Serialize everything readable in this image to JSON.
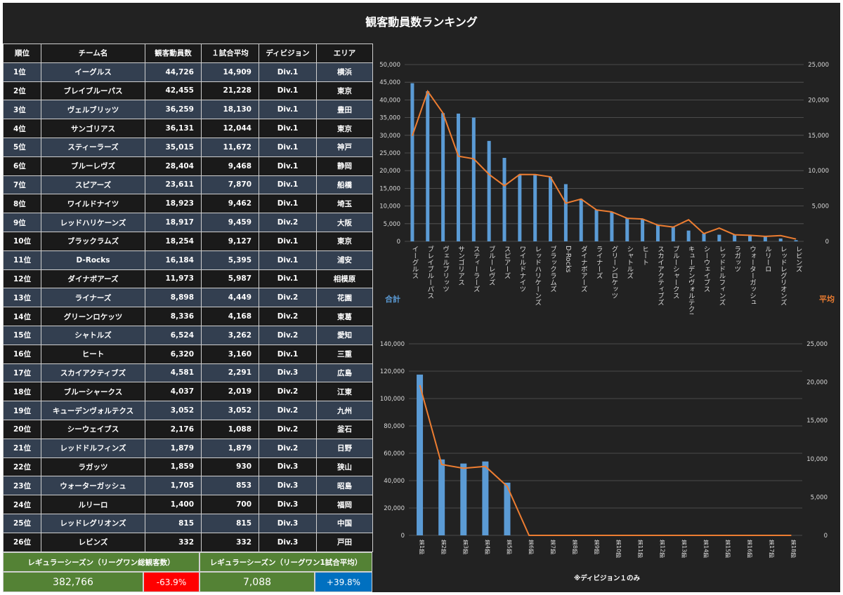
{
  "title": "観客動員数ランキング",
  "table": {
    "headers": [
      "順位",
      "チーム名",
      "観客動員数",
      "１試合平均",
      "ディビジョン",
      "エリア"
    ],
    "rows": [
      [
        "1位",
        "イーグルス",
        "44,726",
        "14,909",
        "Div.1",
        "横浜"
      ],
      [
        "2位",
        "ブレイブルーパス",
        "42,455",
        "21,228",
        "Div.1",
        "東京"
      ],
      [
        "3位",
        "ヴェルブリッツ",
        "36,259",
        "18,130",
        "Div.1",
        "豊田"
      ],
      [
        "4位",
        "サンゴリアス",
        "36,131",
        "12,044",
        "Div.1",
        "東京"
      ],
      [
        "5位",
        "スティーラーズ",
        "35,015",
        "11,672",
        "Div.1",
        "神戸"
      ],
      [
        "6位",
        "ブルーレヴズ",
        "28,404",
        "9,468",
        "Div.1",
        "静岡"
      ],
      [
        "7位",
        "スピアーズ",
        "23,611",
        "7,870",
        "Div.1",
        "船橋"
      ],
      [
        "8位",
        "ワイルドナイツ",
        "18,923",
        "9,462",
        "Div.1",
        "埼玉"
      ],
      [
        "9位",
        "レッドハリケーンズ",
        "18,917",
        "9,459",
        "Div.2",
        "大阪"
      ],
      [
        "10位",
        "ブラックラムズ",
        "18,254",
        "9,127",
        "Div.1",
        "東京"
      ],
      [
        "11位",
        "D-Rocks",
        "16,184",
        "5,395",
        "Div.1",
        "浦安"
      ],
      [
        "12位",
        "ダイナボアーズ",
        "11,973",
        "5,987",
        "Div.1",
        "相模原"
      ],
      [
        "13位",
        "ライナーズ",
        "8,898",
        "4,449",
        "Div.2",
        "花園"
      ],
      [
        "14位",
        "グリーンロケッツ",
        "8,336",
        "4,168",
        "Div.2",
        "東葛"
      ],
      [
        "15位",
        "シャトルズ",
        "6,524",
        "3,262",
        "Div.2",
        "愛知"
      ],
      [
        "16位",
        "ヒート",
        "6,320",
        "3,160",
        "Div.1",
        "三重"
      ],
      [
        "17位",
        "スカイアクティブズ",
        "4,581",
        "2,291",
        "Div.3",
        "広島"
      ],
      [
        "18位",
        "ブルーシャークス",
        "4,037",
        "2,019",
        "Div.2",
        "江東"
      ],
      [
        "19位",
        "キューデンヴォルテクス",
        "3,052",
        "3,052",
        "Div.2",
        "九州"
      ],
      [
        "20位",
        "シーウェイブス",
        "2,176",
        "1,088",
        "Div.2",
        "釜石"
      ],
      [
        "21位",
        "レッドドルフィンズ",
        "1,879",
        "1,879",
        "Div.2",
        "日野"
      ],
      [
        "22位",
        "ラガッツ",
        "1,859",
        "930",
        "Div.3",
        "狭山"
      ],
      [
        "23位",
        "ウォーターガッシュ",
        "1,705",
        "853",
        "Div.3",
        "昭島"
      ],
      [
        "24位",
        "ルリーロ",
        "1,400",
        "700",
        "Div.3",
        "福岡"
      ],
      [
        "25位",
        "レッドレグリオンズ",
        "815",
        "815",
        "Div.3",
        "中国"
      ],
      [
        "26位",
        "レビンズ",
        "332",
        "332",
        "Div.3",
        "戸田"
      ]
    ]
  },
  "summary": {
    "total_label": "レギュラーシーズン（リーグワン総観客数）",
    "total_value": "382,766",
    "total_change": "-63.9%",
    "avg_label": "レギュラーシーズン（リーグワン1試合平均）",
    "avg_value": "7,088",
    "avg_change": "+39.8%"
  },
  "colors": {
    "bar": "#5b9bd5",
    "line": "#ed7d31",
    "row_odd": "#333f50",
    "row_even": "#1a1a1a",
    "summary_green": "#548235",
    "negative": "#ff0000",
    "positive": "#0070c0"
  },
  "chart_data": [
    {
      "type": "bar",
      "categories": [
        "イーグルス",
        "ブレイブルーパス",
        "ヴェルブリッツ",
        "サンゴリアス",
        "スティーラーズ",
        "ブルーレヴズ",
        "スピアーズ",
        "ワイルドナイツ",
        "レッドハリケーンズ",
        "ブラックラムズ",
        "D-Rocks",
        "ダイナボアーズ",
        "ライナーズ",
        "グリーンロケッツ",
        "シャトルズ",
        "ヒート",
        "スカイアクティブズ",
        "ブルーシャークス",
        "キューデンヴォルテクス",
        "シーウェイブス",
        "レッドドルフィンズ",
        "ラガッツ",
        "ウォーターガッシュ",
        "ルリーロ",
        "レッドレグリオンズ",
        "レビンズ"
      ],
      "series": [
        {
          "name": "合計",
          "axis": "left",
          "kind": "bar",
          "values": [
            44726,
            42455,
            36259,
            36131,
            35015,
            28404,
            23611,
            18923,
            18917,
            18254,
            16184,
            11973,
            8898,
            8336,
            6524,
            6320,
            4581,
            4037,
            3052,
            2176,
            1879,
            1859,
            1705,
            1400,
            815,
            332
          ]
        },
        {
          "name": "平均",
          "axis": "right",
          "kind": "line",
          "values": [
            14909,
            21228,
            18130,
            12044,
            11672,
            9468,
            7870,
            9462,
            9459,
            9127,
            5395,
            5987,
            4449,
            4168,
            3262,
            3160,
            2291,
            2019,
            3052,
            1088,
            1879,
            930,
            853,
            700,
            815,
            332
          ]
        }
      ],
      "ylim": [
        0,
        50000
      ],
      "yticks": [
        "0",
        "5,000",
        "10,000",
        "15,000",
        "20,000",
        "25,000",
        "30,000",
        "35,000",
        "40,000",
        "45,000",
        "50,000"
      ],
      "y2lim": [
        0,
        25000
      ],
      "y2ticks": [
        "0",
        "5,000",
        "10,000",
        "15,000",
        "20,000",
        "25,000"
      ],
      "ylabel": "合計",
      "y2label": "平均",
      "grid": true
    },
    {
      "type": "bar",
      "categories": [
        "第1節",
        "第2節",
        "第3節",
        "第4節",
        "第5節",
        "第6節",
        "第7節",
        "第8節",
        "第9節",
        "第10節",
        "第11節",
        "第12節",
        "第13節",
        "第14節",
        "第15節",
        "第16節",
        "第17節",
        "第18節"
      ],
      "series": [
        {
          "name": "合計",
          "axis": "left",
          "kind": "bar",
          "values": [
            117500,
            55500,
            52500,
            54000,
            38500,
            0,
            0,
            0,
            0,
            0,
            0,
            0,
            0,
            0,
            0,
            0,
            0,
            0
          ]
        },
        {
          "name": "平均",
          "axis": "right",
          "kind": "line",
          "values": [
            19600,
            9250,
            8750,
            9000,
            6400,
            0,
            0,
            0,
            0,
            0,
            0,
            0,
            0,
            0,
            0,
            0,
            0,
            0
          ]
        }
      ],
      "ylim": [
        0,
        140000
      ],
      "yticks": [
        "0",
        "20,000",
        "40,000",
        "60,000",
        "80,000",
        "100,000",
        "120,000",
        "140,000"
      ],
      "y2lim": [
        0,
        25000
      ],
      "y2ticks": [
        "0",
        "5,000",
        "10,000",
        "15,000",
        "20,000",
        "25,000"
      ],
      "note": "※ディビジョン１のみ",
      "grid": true
    }
  ]
}
